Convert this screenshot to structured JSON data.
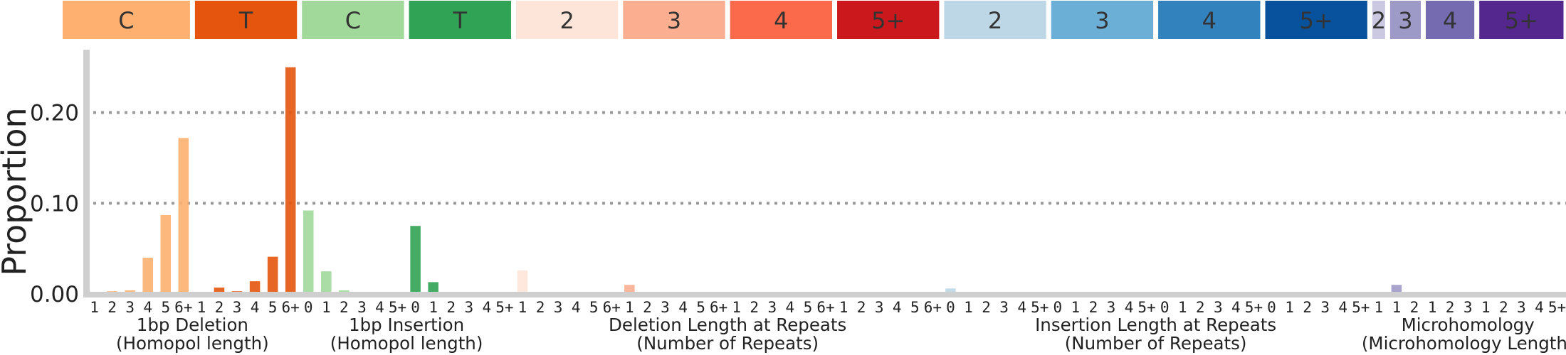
{
  "chart_data": {
    "type": "bar",
    "ylabel": "Proportion",
    "ylim": [
      0,
      0.285
    ],
    "yticks": [
      {
        "value": 0,
        "label": "0.00"
      },
      {
        "value": 0.1,
        "label": "0.10"
      },
      {
        "value": 0.2,
        "label": "0.20"
      }
    ],
    "grid": "horizontal dotted at 0.10 and 0.20",
    "header_blocks": [
      {
        "label": "C",
        "color": "#FDB06F",
        "text_color": "#333333"
      },
      {
        "label": "T",
        "color": "#E6550D",
        "text_color": "#333333"
      },
      {
        "label": "C",
        "color": "#A1D99B",
        "text_color": "#333333"
      },
      {
        "label": "T",
        "color": "#31A354",
        "text_color": "#333333"
      },
      {
        "label": "2",
        "color": "#FEE5D9",
        "text_color": "#333333"
      },
      {
        "label": "3",
        "color": "#FCAE91",
        "text_color": "#333333"
      },
      {
        "label": "4",
        "color": "#FB6A4A",
        "text_color": "#333333"
      },
      {
        "label": "5+",
        "color": "#CB181D",
        "text_color": "#333333"
      },
      {
        "label": "2",
        "color": "#BDD7E7",
        "text_color": "#333333"
      },
      {
        "label": "3",
        "color": "#6BAED6",
        "text_color": "#333333"
      },
      {
        "label": "4",
        "color": "#3182BD",
        "text_color": "#333333"
      },
      {
        "label": "5+",
        "color": "#08519C",
        "text_color": "#333333"
      },
      {
        "label": "2",
        "color": "#CBC9E2",
        "text_color": "#333333"
      },
      {
        "label": "3",
        "color": "#9E9AC8",
        "text_color": "#333333"
      },
      {
        "label": "4",
        "color": "#756BB1",
        "text_color": "#333333"
      },
      {
        "label": "5+",
        "color": "#54278F",
        "text_color": "#333333"
      }
    ],
    "group_labels": [
      {
        "line1": "1bp Deletion",
        "line2": "(Homopol length)"
      },
      {
        "line1": "1bp Insertion",
        "line2": "(Homopol length)"
      },
      {
        "line1": "Deletion Length at Repeats",
        "line2": "(Number of Repeats)"
      },
      {
        "line1": "Insertion Length at Repeats",
        "line2": "(Number of Repeats)"
      },
      {
        "line1": "Microhomology",
        "line2": "(Microhomology Length)"
      }
    ],
    "categories": [
      "1",
      "2",
      "3",
      "4",
      "5",
      "6+",
      "1",
      "2",
      "3",
      "4",
      "5",
      "6+",
      "0",
      "1",
      "2",
      "3",
      "4",
      "5+",
      "0",
      "1",
      "2",
      "3",
      "4",
      "5+",
      "1",
      "2",
      "3",
      "4",
      "5",
      "6+",
      "1",
      "2",
      "3",
      "4",
      "5",
      "6+",
      "1",
      "2",
      "3",
      "4",
      "5",
      "6+",
      "1",
      "2",
      "3",
      "4",
      "5",
      "6+",
      "0",
      "1",
      "2",
      "3",
      "4",
      "5+",
      "0",
      "1",
      "2",
      "3",
      "4",
      "5+",
      "0",
      "1",
      "2",
      "3",
      "4",
      "5+",
      "0",
      "1",
      "2",
      "3",
      "4",
      "5+",
      "1",
      "1",
      "2",
      "1",
      "2",
      "3",
      "1",
      "2",
      "3",
      "4",
      "5+"
    ],
    "values": [
      0.001,
      0.003,
      0.004,
      0.04,
      0.087,
      0.172,
      0.001,
      0.007,
      0.003,
      0.014,
      0.041,
      0.25,
      0.092,
      0.025,
      0.004,
      0.001,
      0.001,
      0.001,
      0.075,
      0.013,
      0.001,
      0.001,
      0.001,
      0.001,
      0.026,
      0.002,
      0.001,
      0.001,
      0.001,
      0.001,
      0.01,
      0.001,
      0.001,
      0.001,
      0.001,
      0.001,
      0.001,
      0.001,
      0.001,
      0.001,
      0.001,
      0.001,
      0.001,
      0.001,
      0.001,
      0.001,
      0.001,
      0.001,
      0.006,
      0.001,
      0.001,
      0.001,
      0.001,
      0.001,
      0.001,
      0.001,
      0.001,
      0.001,
      0.001,
      0.001,
      0.001,
      0.001,
      0.001,
      0.001,
      0.001,
      0.001,
      0.001,
      0.001,
      0.001,
      0.001,
      0.001,
      0.001,
      0.001,
      0.01,
      0.001,
      0.001,
      0.001,
      0.001,
      0.001,
      0.001,
      0.001,
      0.001,
      0.001
    ]
  }
}
